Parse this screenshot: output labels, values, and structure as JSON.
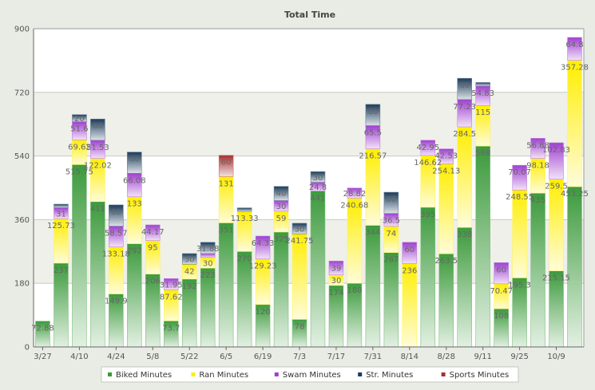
{
  "chart_data": {
    "type": "bar",
    "stacked": true,
    "title": "Total Time",
    "ylim": [
      0,
      900
    ],
    "yticks": [
      0,
      180,
      360,
      540,
      720,
      900
    ],
    "grid": true,
    "legend_position": "bottom",
    "xtick_labels": [
      {
        "index": 0,
        "label": "3/27"
      },
      {
        "index": 2,
        "label": "4/10"
      },
      {
        "index": 4,
        "label": "4/24"
      },
      {
        "index": 6,
        "label": "5/8"
      },
      {
        "index": 8,
        "label": "5/22"
      },
      {
        "index": 10,
        "label": "6/5"
      },
      {
        "index": 12,
        "label": "6/19"
      },
      {
        "index": 14,
        "label": "7/3"
      },
      {
        "index": 16,
        "label": "7/17"
      },
      {
        "index": 18,
        "label": "7/31"
      },
      {
        "index": 20,
        "label": "8/14"
      },
      {
        "index": 22,
        "label": "8/28"
      },
      {
        "index": 24,
        "label": "9/11"
      },
      {
        "index": 26,
        "label": "9/25"
      },
      {
        "index": 28,
        "label": "10/9"
      }
    ],
    "series": [
      {
        "name": "Biked Minutes",
        "color": "#3c9a3c",
        "values": [
          72.88,
          237,
          515.75,
          411,
          149.9,
          292,
          206,
          73.7,
          192,
          223,
          351,
          270,
          120,
          325,
          78,
          441,
          174,
          180,
          344,
          267,
          0,
          395,
          263.5,
          338,
          568,
          108,
          195.3,
          435,
          215.15,
          453.25
        ],
        "labels": [
          "72.88",
          "237",
          "515.75",
          "411",
          "149.9",
          "292",
          "206",
          "73.7",
          "192",
          "223",
          "351",
          "270",
          "120",
          "325",
          "78",
          "441",
          "174",
          "180",
          "344",
          "267",
          "",
          "395",
          "263.5",
          "338",
          "568",
          "108",
          "195.3",
          "435",
          "215.15",
          "453.25"
        ]
      },
      {
        "name": "Ran Minutes",
        "color": "#ffee00",
        "values": [
          0,
          125.73,
          69.62,
          122.02,
          133.18,
          133,
          95,
          87.62,
          42,
          30,
          131,
          113.33,
          129.23,
          59,
          241.75,
          0,
          30,
          240.68,
          216.57,
          74,
          236,
          146.62,
          254.13,
          284.5,
          115,
          70.47,
          248.55,
          98.18,
          259.5,
          357.28
        ],
        "labels": [
          "",
          "125.73",
          "69.62",
          "122.02",
          "133.18",
          "133",
          "95",
          "87.62",
          "42",
          "30",
          "131",
          "113.33",
          "129.23",
          "59",
          "241.75",
          "",
          "30",
          "240.68",
          "216.57",
          "74",
          "236",
          "146.62",
          "254.13",
          "284.5",
          "115",
          "70.47",
          "248.55",
          "98.18",
          "259.5",
          "357.28"
        ]
      },
      {
        "name": "Swam Minutes",
        "color": "#a040d0",
        "values": [
          0,
          31,
          51.6,
          51.53,
          58.57,
          66.08,
          44.17,
          31.95,
          0,
          11,
          0,
          0,
          64.33,
          30,
          0,
          24.8,
          39,
          28.82,
          65.5,
          36.5,
          60,
          42.95,
          42.53,
          77.23,
          54.83,
          60,
          70.07,
          56.88,
          102.83,
          64.8
        ],
        "labels": [
          "",
          "31",
          "51.6",
          "51.53",
          "58.57",
          "66.08",
          "44.17",
          "31.95",
          "",
          "",
          "",
          "",
          "64.33",
          "30",
          "",
          "24.8",
          "39",
          "28.82",
          "65.5",
          "36.5",
          "60",
          "42.95",
          "42.53",
          "77.23",
          "54.83",
          "60",
          "70.07",
          "56.88",
          "102.83",
          "64.8"
        ]
      },
      {
        "name": "Str. Minutes",
        "color": "#1a3c5c",
        "values": [
          0,
          10,
          20,
          60,
          60,
          60,
          0,
          0,
          30,
          31.88,
          0,
          10,
          0,
          40,
          30,
          30,
          0,
          0,
          60,
          60,
          0,
          0,
          0,
          60,
          10,
          0,
          0,
          0,
          0,
          0
        ],
        "labels": [
          "",
          "",
          "20",
          "60",
          "60",
          "60",
          "",
          "",
          "30",
          "31.88",
          "",
          "",
          "",
          "40",
          "30",
          "30",
          "",
          "",
          "60",
          "60",
          "",
          "",
          "",
          "60",
          "",
          "",
          "",
          "",
          "",
          ""
        ]
      },
      {
        "name": "Sports Minutes",
        "color": "#a83030",
        "values": [
          0,
          0,
          0,
          0,
          0,
          0,
          0,
          0,
          0,
          0,
          60,
          0,
          0,
          0,
          0,
          0,
          0,
          0,
          0,
          0,
          0,
          0,
          0,
          0,
          0,
          0,
          0,
          0,
          0,
          0
        ],
        "labels": [
          "",
          "",
          "",
          "",
          "",
          "",
          "",
          "",
          "",
          "",
          "60",
          "",
          "",
          "",
          "",
          "",
          "",
          "",
          "",
          "",
          "",
          "",
          "",
          "",
          "",
          "",
          "",
          "",
          "",
          ""
        ]
      }
    ]
  }
}
